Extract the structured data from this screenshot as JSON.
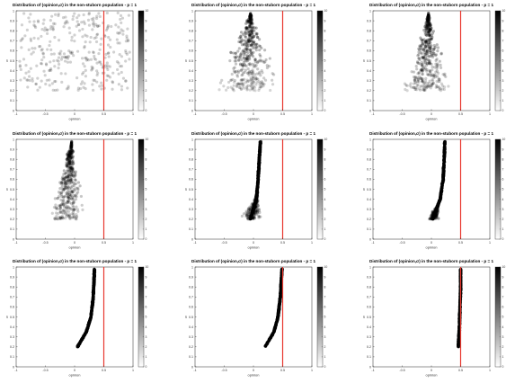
{
  "chart_data": [
    {
      "type": "scatter",
      "panel": 1,
      "title": "Distribution of (opinion,σ) in the non-stuborn population - p = 1",
      "xlabel": "opinion",
      "ylabel": "σ",
      "xlim": [
        -1,
        1
      ],
      "ylim": [
        0,
        1
      ],
      "xticks": [
        -1,
        -0.5,
        0,
        0.5,
        1
      ],
      "xtick_labels": [
        "-1",
        "-0.5",
        "0",
        "0.5",
        "1"
      ],
      "yticks": [
        0,
        0.1,
        0.2,
        0.3,
        0.4,
        0.5,
        0.6,
        0.7,
        0.8,
        0.9,
        1
      ],
      "ytick_labels": [
        "0",
        "0.1",
        "0.2",
        "0.3",
        "0.4",
        "0.5",
        "0.6",
        "0.7",
        "0.8",
        "0.9",
        "1"
      ],
      "reference_line_x": 0.5,
      "reference_line_color": "#e8372e",
      "marker_color": "#000000",
      "colorbar_range": [
        0,
        10
      ],
      "colorbar_ticks": [
        "0",
        "1",
        "2",
        "3",
        "4",
        "5",
        "6",
        "7",
        "8",
        "9",
        "10"
      ],
      "distribution": {
        "shape": "uniform",
        "x_range": [
          -0.95,
          0.95
        ],
        "sigma_range": [
          0.2,
          0.98
        ]
      }
    },
    {
      "type": "scatter",
      "panel": 2,
      "title": "Distribution of (opinion,σ) in the non-stuborn population - p = 1",
      "xlabel": "opinion",
      "ylabel": "σ",
      "xlim": [
        -1,
        1
      ],
      "ylim": [
        0,
        1
      ],
      "xticks": [
        -1,
        -0.5,
        0,
        0.5,
        1
      ],
      "xtick_labels": [
        "-1",
        "-0.5",
        "0",
        "0.5",
        "1"
      ],
      "yticks": [
        0,
        0.1,
        0.2,
        0.3,
        0.4,
        0.5,
        0.6,
        0.7,
        0.8,
        0.9,
        1
      ],
      "ytick_labels": [
        "0",
        "0.1",
        "0.2",
        "0.3",
        "0.4",
        "0.5",
        "0.6",
        "0.7",
        "0.8",
        "0.9",
        "1"
      ],
      "reference_line_x": 0.5,
      "reference_line_color": "#e8372e",
      "marker_color": "#000000",
      "colorbar_range": [
        0,
        10
      ],
      "colorbar_ticks": [
        "0",
        "1",
        "2",
        "3",
        "4",
        "5",
        "6",
        "7",
        "8",
        "9",
        "10"
      ],
      "distribution": {
        "shape": "triangle",
        "apex": [
          -0.05,
          0.98
        ],
        "base_left": -0.75,
        "base_right": 0.55,
        "base_sigma": 0.2
      }
    },
    {
      "type": "scatter",
      "panel": 3,
      "title": "Distribution of (opinion,σ) in the non-stuborn population - p = 1",
      "xlabel": "opinion",
      "ylabel": "σ",
      "xlim": [
        -1,
        1
      ],
      "ylim": [
        0,
        1
      ],
      "xticks": [
        -1,
        -0.5,
        0,
        0.5,
        1
      ],
      "xtick_labels": [
        "-1",
        "-0.5",
        "0",
        "0.5",
        "1"
      ],
      "yticks": [
        0,
        0.1,
        0.2,
        0.3,
        0.4,
        0.5,
        0.6,
        0.7,
        0.8,
        0.9,
        1
      ],
      "ytick_labels": [
        "0",
        "0.1",
        "0.2",
        "0.3",
        "0.4",
        "0.5",
        "0.6",
        "0.7",
        "0.8",
        "0.9",
        "1"
      ],
      "reference_line_x": 0.5,
      "reference_line_color": "#e8372e",
      "marker_color": "#000000",
      "colorbar_range": [
        0,
        10
      ],
      "colorbar_ticks": [
        "0",
        "1",
        "2",
        "3",
        "4",
        "5",
        "6",
        "7",
        "8",
        "9",
        "10"
      ],
      "distribution": {
        "shape": "triangle",
        "apex": [
          -0.05,
          0.98
        ],
        "base_left": -0.6,
        "base_right": 0.4,
        "base_sigma": 0.2
      }
    },
    {
      "type": "scatter",
      "panel": 4,
      "title": "Distribution of (opinion,σ) in the non-stuborn population - p = 1",
      "xlabel": "opinion",
      "ylabel": "σ",
      "xlim": [
        -1,
        1
      ],
      "ylim": [
        0,
        1
      ],
      "xticks": [
        -1,
        -0.5,
        0,
        0.5,
        1
      ],
      "xtick_labels": [
        "-1",
        "-0.5",
        "0",
        "0.5",
        "1"
      ],
      "yticks": [
        0,
        0.1,
        0.2,
        0.3,
        0.4,
        0.5,
        0.6,
        0.7,
        0.8,
        0.9,
        1
      ],
      "ytick_labels": [
        "0",
        "0.1",
        "0.2",
        "0.3",
        "0.4",
        "0.5",
        "0.6",
        "0.7",
        "0.8",
        "0.9",
        "1"
      ],
      "reference_line_x": 0.5,
      "reference_line_color": "#e8372e",
      "marker_color": "#000000",
      "colorbar_range": [
        0,
        10
      ],
      "colorbar_ticks": [
        "0",
        "1",
        "2",
        "3",
        "4",
        "5",
        "6",
        "7",
        "8",
        "9",
        "10"
      ],
      "distribution": {
        "shape": "triangle",
        "apex": [
          -0.05,
          0.98
        ],
        "base_left": -0.55,
        "base_right": 0.25,
        "base_sigma": 0.2
      }
    },
    {
      "type": "scatter",
      "panel": 5,
      "title": "Distribution of (opinion,σ) in the non-stuborn population - p = 1",
      "xlabel": "opinion",
      "ylabel": "σ",
      "xlim": [
        -1,
        1
      ],
      "ylim": [
        0,
        1
      ],
      "xticks": [
        -1,
        -0.5,
        0,
        0.5,
        1
      ],
      "xtick_labels": [
        "-1",
        "-0.5",
        "0",
        "0.5",
        "1"
      ],
      "yticks": [
        0,
        0.1,
        0.2,
        0.3,
        0.4,
        0.5,
        0.6,
        0.7,
        0.8,
        0.9,
        1
      ],
      "ytick_labels": [
        "0",
        "0.1",
        "0.2",
        "0.3",
        "0.4",
        "0.5",
        "0.6",
        "0.7",
        "0.8",
        "0.9",
        "1"
      ],
      "reference_line_x": 0.5,
      "reference_line_color": "#e8372e",
      "marker_color": "#000000",
      "colorbar_range": [
        0,
        10
      ],
      "colorbar_ticks": [
        "0",
        "1",
        "2",
        "3",
        "4",
        "5",
        "6",
        "7",
        "8",
        "9",
        "10"
      ],
      "distribution": {
        "shape": "curve_with_spread",
        "curve": [
          [
            -0.05,
            0.2
          ],
          [
            0.05,
            0.4
          ],
          [
            0.08,
            0.6
          ],
          [
            0.1,
            0.8
          ],
          [
            0.12,
            0.98
          ]
        ],
        "spread_below_sigma": 0.45,
        "spread_x_range": [
          -0.35,
          0.3
        ]
      }
    },
    {
      "type": "scatter",
      "panel": 6,
      "title": "Distribution of (opinion,σ) in the non-stuborn population - p = 1",
      "xlabel": "opinion",
      "ylabel": "σ",
      "xlim": [
        -1,
        1
      ],
      "ylim": [
        0,
        1
      ],
      "xticks": [
        -1,
        -0.5,
        0,
        0.5,
        1
      ],
      "xtick_labels": [
        "-1",
        "-0.5",
        "0",
        "0.5",
        "1"
      ],
      "yticks": [
        0,
        0.1,
        0.2,
        0.3,
        0.4,
        0.5,
        0.6,
        0.7,
        0.8,
        0.9,
        1
      ],
      "ytick_labels": [
        "0",
        "0.1",
        "0.2",
        "0.3",
        "0.4",
        "0.5",
        "0.6",
        "0.7",
        "0.8",
        "0.9",
        "1"
      ],
      "reference_line_x": 0.5,
      "reference_line_color": "#e8372e",
      "marker_color": "#000000",
      "colorbar_range": [
        0,
        10
      ],
      "colorbar_ticks": [
        "0",
        "1",
        "2",
        "3",
        "4",
        "5",
        "6",
        "7",
        "8",
        "9",
        "10"
      ],
      "distribution": {
        "shape": "curve_with_spread",
        "curve": [
          [
            0.02,
            0.2
          ],
          [
            0.15,
            0.4
          ],
          [
            0.2,
            0.6
          ],
          [
            0.22,
            0.8
          ],
          [
            0.23,
            0.98
          ]
        ],
        "spread_below_sigma": 0.35,
        "spread_x_range": [
          -0.1,
          0.25
        ]
      }
    },
    {
      "type": "scatter",
      "panel": 7,
      "title": "Distribution of (opinion,σ) in the non-stuborn population - p = 1",
      "xlabel": "opinion",
      "ylabel": "σ",
      "xlim": [
        -1,
        1
      ],
      "ylim": [
        0,
        1
      ],
      "xticks": [
        -1,
        -0.5,
        0,
        0.5,
        1
      ],
      "xtick_labels": [
        "-1",
        "-0.5",
        "0",
        "0.5",
        "1"
      ],
      "yticks": [
        0,
        0.1,
        0.2,
        0.3,
        0.4,
        0.5,
        0.6,
        0.7,
        0.8,
        0.9,
        1
      ],
      "ytick_labels": [
        "0",
        "0.1",
        "0.2",
        "0.3",
        "0.4",
        "0.5",
        "0.6",
        "0.7",
        "0.8",
        "0.9",
        "1"
      ],
      "reference_line_x": 0.5,
      "reference_line_color": "#e8372e",
      "marker_color": "#000000",
      "colorbar_range": [
        0,
        10
      ],
      "colorbar_ticks": [
        "0",
        "1",
        "2",
        "3",
        "4",
        "5",
        "6",
        "7",
        "8",
        "9",
        "10"
      ],
      "distribution": {
        "shape": "curve",
        "curve": [
          [
            0.05,
            0.2
          ],
          [
            0.2,
            0.35
          ],
          [
            0.28,
            0.5
          ],
          [
            0.32,
            0.7
          ],
          [
            0.34,
            0.98
          ]
        ]
      }
    },
    {
      "type": "scatter",
      "panel": 8,
      "title": "Distribution of (opinion,σ) in the non-stuborn population - p = 1",
      "xlabel": "opinion",
      "ylabel": "σ",
      "xlim": [
        -1,
        1
      ],
      "ylim": [
        0,
        1
      ],
      "xticks": [
        -1,
        -0.5,
        0,
        0.5,
        1
      ],
      "xtick_labels": [
        "-1",
        "-0.5",
        "0",
        "0.5",
        "1"
      ],
      "yticks": [
        0,
        0.1,
        0.2,
        0.3,
        0.4,
        0.5,
        0.6,
        0.7,
        0.8,
        0.9,
        1
      ],
      "ytick_labels": [
        "0",
        "0.1",
        "0.2",
        "0.3",
        "0.4",
        "0.5",
        "0.6",
        "0.7",
        "0.8",
        "0.9",
        "1"
      ],
      "reference_line_x": 0.5,
      "reference_line_color": "#e8372e",
      "marker_color": "#000000",
      "colorbar_range": [
        0,
        10
      ],
      "colorbar_ticks": [
        "0",
        "1",
        "2",
        "3",
        "4",
        "5",
        "6",
        "7",
        "8",
        "9",
        "10"
      ],
      "distribution": {
        "shape": "curve",
        "curve": [
          [
            0.2,
            0.2
          ],
          [
            0.35,
            0.35
          ],
          [
            0.42,
            0.5
          ],
          [
            0.46,
            0.7
          ],
          [
            0.49,
            0.98
          ]
        ]
      }
    },
    {
      "type": "scatter",
      "panel": 9,
      "title": "Distribution of (opinion,σ) in the non-stuborn population - p = 1",
      "xlabel": "opinion",
      "ylabel": "σ",
      "xlim": [
        -1,
        1
      ],
      "ylim": [
        0,
        1
      ],
      "xticks": [
        -1,
        -0.5,
        0,
        0.5,
        1
      ],
      "xtick_labels": [
        "-1",
        "-0.5",
        "0",
        "0.5",
        "1"
      ],
      "yticks": [
        0,
        0.1,
        0.2,
        0.3,
        0.4,
        0.5,
        0.6,
        0.7,
        0.8,
        0.9,
        1
      ],
      "ytick_labels": [
        "0",
        "0.1",
        "0.2",
        "0.3",
        "0.4",
        "0.5",
        "0.6",
        "0.7",
        "0.8",
        "0.9",
        "1"
      ],
      "reference_line_x": 0.5,
      "reference_line_color": "#e8372e",
      "marker_color": "#000000",
      "colorbar_range": [
        0,
        10
      ],
      "colorbar_ticks": [
        "0",
        "1",
        "2",
        "3",
        "4",
        "5",
        "6",
        "7",
        "8",
        "9",
        "10"
      ],
      "distribution": {
        "shape": "curve",
        "curve": [
          [
            0.46,
            0.2
          ],
          [
            0.48,
            0.4
          ],
          [
            0.49,
            0.6
          ],
          [
            0.5,
            0.8
          ],
          [
            0.5,
            0.98
          ]
        ]
      }
    }
  ]
}
